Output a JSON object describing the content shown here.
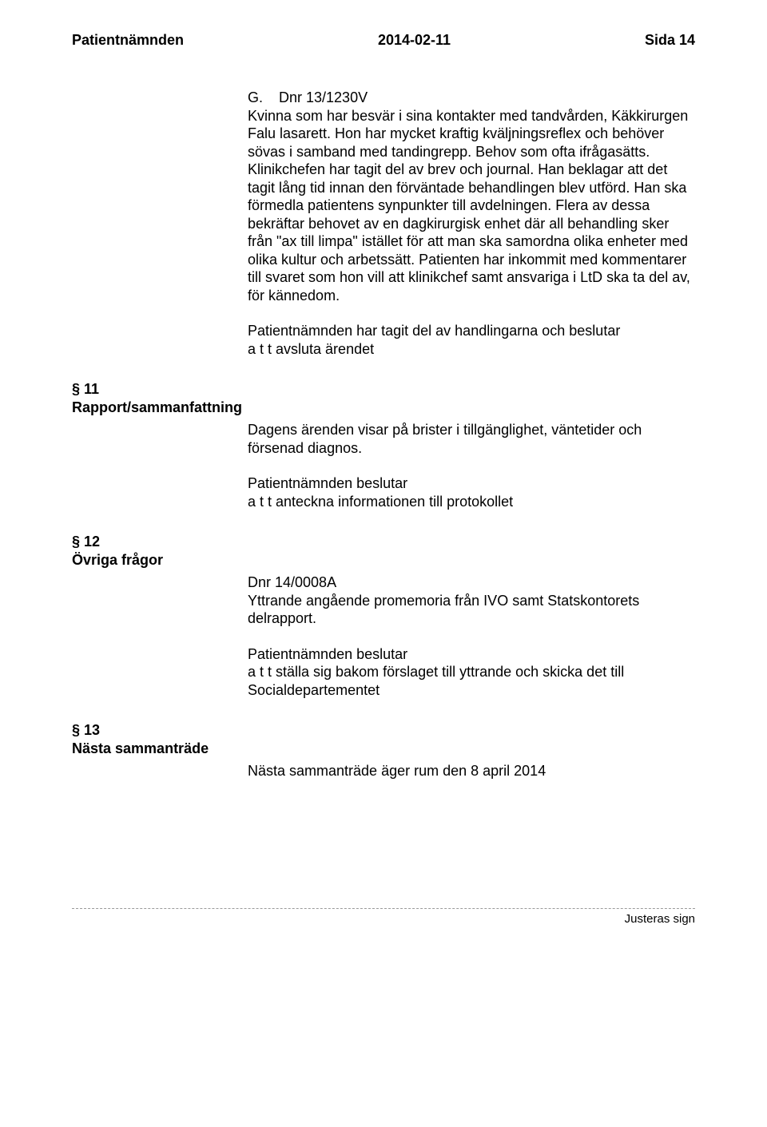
{
  "header": {
    "left": "Patientnämnden",
    "center": "2014-02-11",
    "right": "Sida 14"
  },
  "caseG": {
    "title": "G.    Dnr 13/1230V",
    "body": "Kvinna som har besvär i sina kontakter med tandvården, Käkkirurgen Falu lasarett. Hon har mycket kraftig kväljningsreflex och behöver sövas i samband med tandingrepp. Behov som ofta ifrågasätts. Klinikchefen har tagit del av brev och journal. Han beklagar att det tagit lång tid innan den förväntade behandlingen blev utförd. Han ska förmedla patientens synpunkter till avdelningen. Flera av dessa bekräftar behovet av en dagkirurgisk enhet där all behandling sker från \"ax till limpa\" istället för att man ska samordna olika enheter med olika kultur och arbetssätt. Patienten har inkommit med kommentarer till svaret som hon vill att klinikchef samt ansvariga i LtD ska ta del av, för kännedom.",
    "decision_line1": "Patientnämnden har tagit del av handlingarna och beslutar",
    "decision_line2": "a t t avsluta ärendet"
  },
  "section11": {
    "heading_line1": "§ 11",
    "heading_line2": "Rapport/sammanfattning",
    "body": "Dagens ärenden visar på brister i tillgänglighet, väntetider och försenad diagnos.",
    "decision_line1": "Patientnämnden beslutar",
    "decision_line2": "a t t anteckna informationen till protokollet"
  },
  "section12": {
    "heading_line1": "§ 12",
    "heading_line2": "Övriga frågor",
    "dnr": "Dnr 14/0008A",
    "body": "Yttrande angående promemoria från IVO samt Statskontorets delrapport.",
    "decision_line1": "Patientnämnden beslutar",
    "decision_line2": "a t t ställa sig bakom förslaget till yttrande och skicka det till Socialdepartementet"
  },
  "section13": {
    "heading_line1": "§ 13",
    "heading_line2": "Nästa sammanträde",
    "body": "Nästa sammanträde äger rum den 8 april 2014"
  },
  "footer": {
    "label": "Justeras sign"
  }
}
